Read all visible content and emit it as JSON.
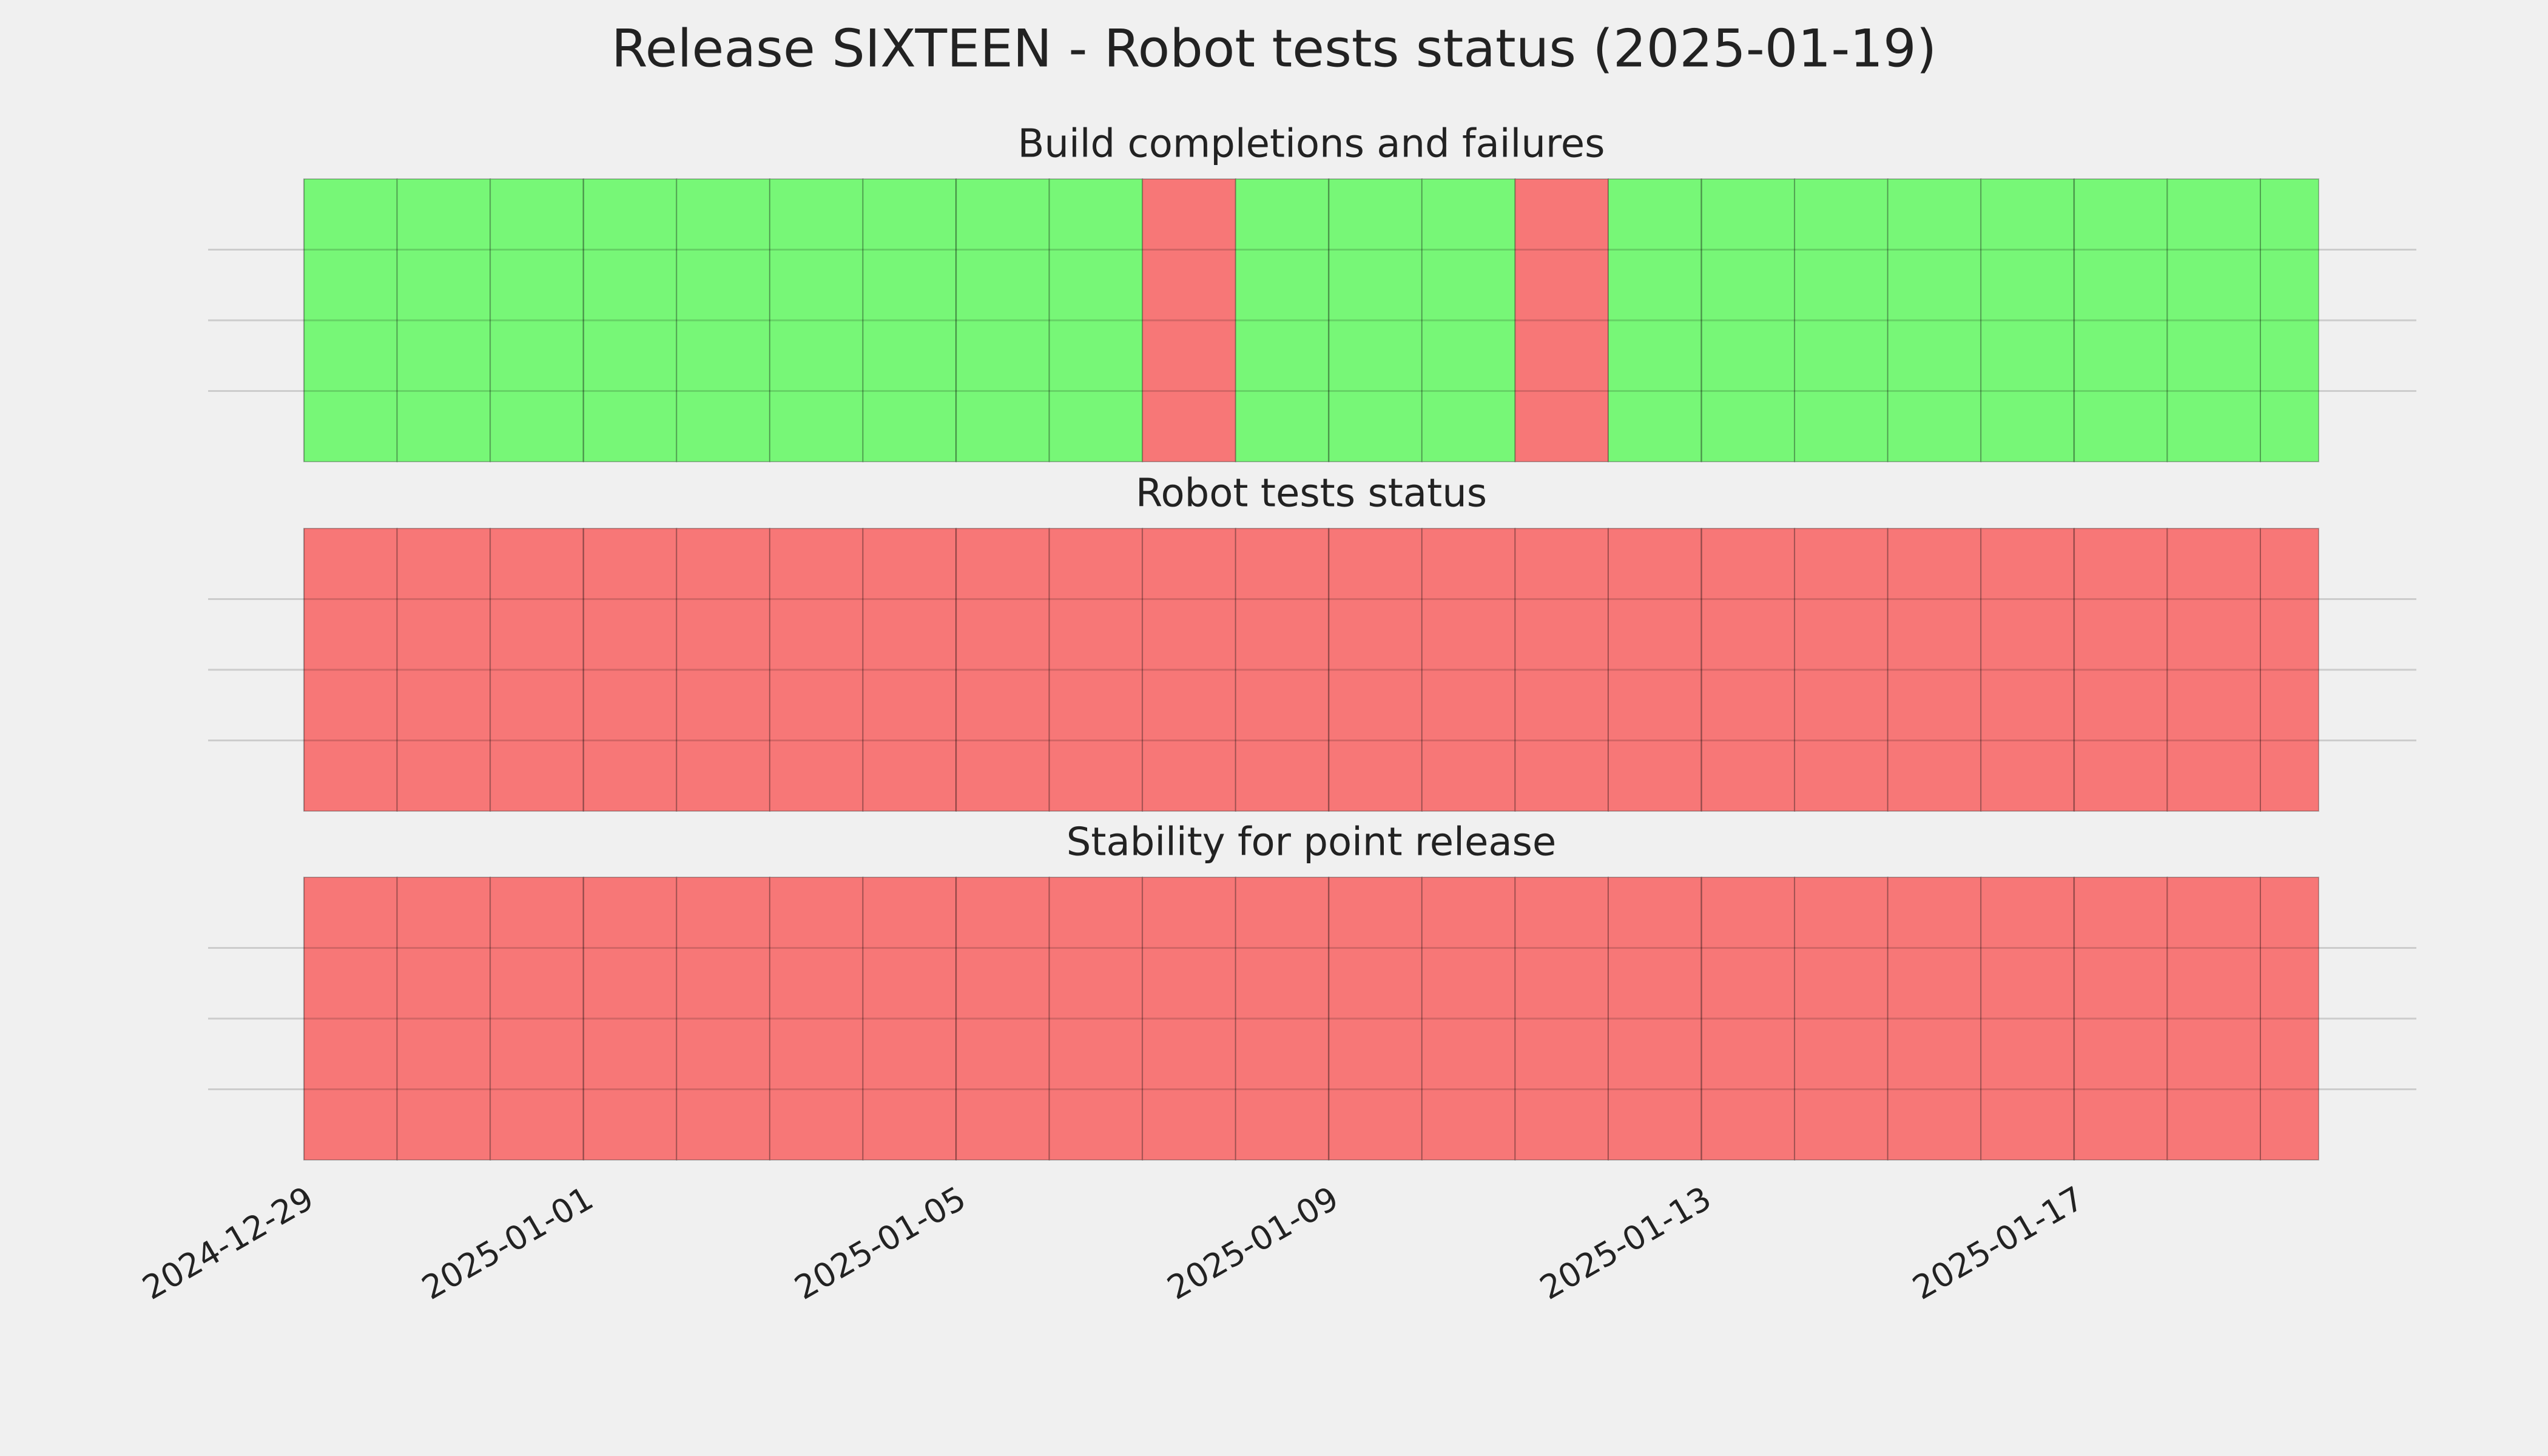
{
  "title": "Release SIXTEEN - Robot tests status (2025-01-19)",
  "chart_data": [
    {
      "type": "timeline",
      "title": "Build completions and failures",
      "x": [
        "2024-12-29",
        "2024-12-30",
        "2024-12-31",
        "2025-01-01",
        "2025-01-02",
        "2025-01-03",
        "2025-01-04",
        "2025-01-05",
        "2025-01-06",
        "2025-01-07",
        "2025-01-08",
        "2025-01-09",
        "2025-01-10",
        "2025-01-11",
        "2025-01-12",
        "2025-01-13",
        "2025-01-14",
        "2025-01-15",
        "2025-01-16",
        "2025-01-17",
        "2025-01-18",
        "2025-01-19"
      ],
      "values": [
        1,
        1,
        1,
        1,
        1,
        1,
        1,
        1,
        1,
        0,
        1,
        1,
        1,
        0,
        1,
        1,
        1,
        1,
        1,
        1,
        1,
        1
      ],
      "colors": [
        "#f77777",
        "#77f777"
      ],
      "xlim": [
        "2024-12-29",
        "2025-01-19T15:00"
      ],
      "xticks": [
        "2024-12-29",
        "2025-01-01",
        "2025-01-05",
        "2025-01-09",
        "2025-01-13",
        "2025-01-17"
      ],
      "ylim": [
        0,
        1
      ],
      "yticks": [
        0.25,
        0.5,
        0.75
      ],
      "grid": true
    },
    {
      "type": "timeline",
      "title": "Robot tests status",
      "x": [
        "2024-12-29",
        "2024-12-30",
        "2024-12-31",
        "2025-01-01",
        "2025-01-02",
        "2025-01-03",
        "2025-01-04",
        "2025-01-05",
        "2025-01-06",
        "2025-01-07",
        "2025-01-08",
        "2025-01-09",
        "2025-01-10",
        "2025-01-11",
        "2025-01-12",
        "2025-01-13",
        "2025-01-14",
        "2025-01-15",
        "2025-01-16",
        "2025-01-17",
        "2025-01-18",
        "2025-01-19"
      ],
      "values": [
        0,
        0,
        0,
        0,
        0,
        0,
        0,
        0,
        0,
        0,
        0,
        0,
        0,
        0,
        0,
        0,
        0,
        0,
        0,
        0,
        0,
        0
      ],
      "colors": [
        "#f77777",
        "#77f777"
      ],
      "xlim": [
        "2024-12-29",
        "2025-01-19T15:00"
      ],
      "xticks": [
        "2024-12-29",
        "2025-01-01",
        "2025-01-05",
        "2025-01-09",
        "2025-01-13",
        "2025-01-17"
      ],
      "ylim": [
        0,
        1
      ],
      "yticks": [
        0.25,
        0.5,
        0.75
      ],
      "grid": true
    },
    {
      "type": "timeline",
      "title": "Stability for point release",
      "x": [
        "2024-12-29",
        "2024-12-30",
        "2024-12-31",
        "2025-01-01",
        "2025-01-02",
        "2025-01-03",
        "2025-01-04",
        "2025-01-05",
        "2025-01-06",
        "2025-01-07",
        "2025-01-08",
        "2025-01-09",
        "2025-01-10",
        "2025-01-11",
        "2025-01-12",
        "2025-01-13",
        "2025-01-14",
        "2025-01-15",
        "2025-01-16",
        "2025-01-17",
        "2025-01-18",
        "2025-01-19"
      ],
      "values": [
        0,
        0,
        0,
        0,
        0,
        0,
        0,
        0,
        0,
        0,
        0,
        0,
        0,
        0,
        0,
        0,
        0,
        0,
        0,
        0,
        0,
        0
      ],
      "colors": [
        "#f77777",
        "#77f777"
      ],
      "xlim": [
        "2024-12-29",
        "2025-01-19T15:00"
      ],
      "xticks": [
        "2024-12-29",
        "2025-01-01",
        "2025-01-05",
        "2025-01-09",
        "2025-01-13",
        "2025-01-17"
      ],
      "ylim": [
        0,
        1
      ],
      "yticks": [
        0.25,
        0.5,
        0.75
      ],
      "grid": true
    }
  ]
}
